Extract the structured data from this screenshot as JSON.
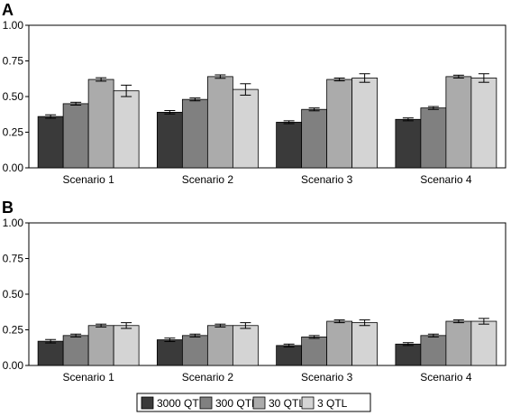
{
  "panels": [
    {
      "letter": "A"
    },
    {
      "letter": "B"
    }
  ],
  "legend": {
    "items": [
      {
        "label": "3000 QTL",
        "color": "#3a3a3a"
      },
      {
        "label": "300 QTL",
        "color": "#808080"
      },
      {
        "label": "30 QTL",
        "color": "#ababab"
      },
      {
        "label": "3 QTL",
        "color": "#d4d4d4"
      }
    ]
  },
  "chart_data": [
    {
      "type": "bar",
      "panel": "A",
      "categories": [
        "Scenario 1",
        "Scenario 2",
        "Scenario 3",
        "Scenario 4"
      ],
      "ylim": [
        0,
        1.0
      ],
      "yticks": [
        "0.00",
        "0.25",
        "0.50",
        "0.75",
        "1.00"
      ],
      "grid": false,
      "series": [
        {
          "name": "3000 QTL",
          "values": [
            0.36,
            0.39,
            0.32,
            0.34
          ],
          "errors": [
            0.012,
            0.012,
            0.01,
            0.01
          ]
        },
        {
          "name": "300 QTL",
          "values": [
            0.45,
            0.48,
            0.41,
            0.42
          ],
          "errors": [
            0.01,
            0.01,
            0.01,
            0.01
          ]
        },
        {
          "name": "30 QTL",
          "values": [
            0.62,
            0.64,
            0.62,
            0.64
          ],
          "errors": [
            0.012,
            0.012,
            0.01,
            0.01
          ]
        },
        {
          "name": "3 QTL",
          "values": [
            0.54,
            0.55,
            0.63,
            0.63
          ],
          "errors": [
            0.04,
            0.04,
            0.03,
            0.03
          ]
        }
      ]
    },
    {
      "type": "bar",
      "panel": "B",
      "categories": [
        "Scenario 1",
        "Scenario 2",
        "Scenario 3",
        "Scenario 4"
      ],
      "ylim": [
        0,
        1.0
      ],
      "yticks": [
        "0.00",
        "0.25",
        "0.50",
        "0.75",
        "1.00"
      ],
      "grid": false,
      "series": [
        {
          "name": "3000 QTL",
          "values": [
            0.17,
            0.18,
            0.14,
            0.15
          ],
          "errors": [
            0.012,
            0.012,
            0.01,
            0.01
          ]
        },
        {
          "name": "300 QTL",
          "values": [
            0.21,
            0.21,
            0.2,
            0.21
          ],
          "errors": [
            0.01,
            0.01,
            0.01,
            0.01
          ]
        },
        {
          "name": "30 QTL",
          "values": [
            0.28,
            0.28,
            0.31,
            0.31
          ],
          "errors": [
            0.01,
            0.01,
            0.01,
            0.01
          ]
        },
        {
          "name": "3 QTL",
          "values": [
            0.28,
            0.28,
            0.3,
            0.31
          ],
          "errors": [
            0.02,
            0.02,
            0.02,
            0.02
          ]
        }
      ]
    }
  ]
}
